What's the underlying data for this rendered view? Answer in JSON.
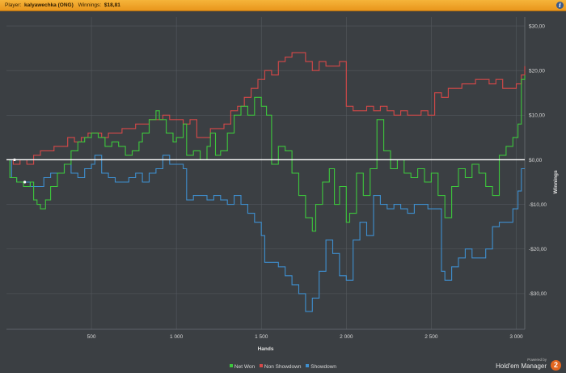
{
  "header": {
    "player_label": "Player:",
    "player_name": "kalyawechka (ONG)",
    "winnings_label": "Winnings:",
    "winnings_value": "$18,81",
    "info_icon": "info-icon"
  },
  "brand": {
    "powered_by": "Powered by",
    "name": "Hold'em Manager",
    "badge": "2"
  },
  "colors": {
    "background": "#3b3f43",
    "grid": "#54595e",
    "zero_line": "#ffffff",
    "net_won": "#3cc73c",
    "non_showdown": "#d64848",
    "showdown": "#3e8fcf",
    "header": "#f0a52c"
  },
  "chart_data": {
    "type": "line",
    "xlabel": "Hands",
    "ylabel": "Winnings",
    "xlim": [
      0,
      3050
    ],
    "ylim": [
      -38,
      32
    ],
    "x_ticks": [
      500,
      1000,
      1500,
      2000,
      2500,
      3000
    ],
    "x_tick_labels": [
      "500",
      "1 000",
      "1 500",
      "2 000",
      "2 500",
      "3 000"
    ],
    "y_ticks": [
      30,
      20,
      10,
      0,
      -10,
      -20,
      -30
    ],
    "y_tick_labels": [
      "$30,00",
      "$20,00",
      "$10,00",
      "$0,00",
      "-$10,00",
      "-$20,00",
      "-$30,00"
    ],
    "grid": true,
    "legend_position": "bottom-center",
    "series": [
      {
        "name": "Net Won",
        "color": "#3cc73c",
        "points": [
          [
            0,
            0
          ],
          [
            20,
            -4
          ],
          [
            60,
            -5
          ],
          [
            100,
            -6
          ],
          [
            140,
            -5
          ],
          [
            160,
            -9
          ],
          [
            180,
            -10
          ],
          [
            200,
            -11
          ],
          [
            230,
            -9
          ],
          [
            260,
            -6
          ],
          [
            300,
            -3
          ],
          [
            340,
            -1
          ],
          [
            380,
            2
          ],
          [
            420,
            4
          ],
          [
            460,
            5
          ],
          [
            500,
            6
          ],
          [
            540,
            5
          ],
          [
            580,
            3
          ],
          [
            620,
            4
          ],
          [
            660,
            3
          ],
          [
            700,
            1
          ],
          [
            740,
            2
          ],
          [
            780,
            4
          ],
          [
            800,
            6
          ],
          [
            840,
            9
          ],
          [
            880,
            11
          ],
          [
            900,
            9
          ],
          [
            940,
            6
          ],
          [
            980,
            4
          ],
          [
            1000,
            5
          ],
          [
            1040,
            8
          ],
          [
            1060,
            1
          ],
          [
            1100,
            2
          ],
          [
            1140,
            0
          ],
          [
            1180,
            3
          ],
          [
            1200,
            6
          ],
          [
            1230,
            1
          ],
          [
            1260,
            2
          ],
          [
            1300,
            6
          ],
          [
            1340,
            10
          ],
          [
            1380,
            12
          ],
          [
            1420,
            10
          ],
          [
            1460,
            14
          ],
          [
            1500,
            12
          ],
          [
            1530,
            10
          ],
          [
            1560,
            -1
          ],
          [
            1600,
            3
          ],
          [
            1640,
            2
          ],
          [
            1680,
            -3
          ],
          [
            1720,
            -8
          ],
          [
            1760,
            -13
          ],
          [
            1800,
            -16
          ],
          [
            1820,
            -10
          ],
          [
            1860,
            -5
          ],
          [
            1900,
            -2
          ],
          [
            1930,
            -10
          ],
          [
            1960,
            -6
          ],
          [
            2000,
            -14
          ],
          [
            2020,
            -12
          ],
          [
            2060,
            -3
          ],
          [
            2100,
            -8
          ],
          [
            2140,
            -2
          ],
          [
            2180,
            9
          ],
          [
            2220,
            2
          ],
          [
            2260,
            -2
          ],
          [
            2300,
            0
          ],
          [
            2340,
            -3
          ],
          [
            2380,
            -4
          ],
          [
            2420,
            -2
          ],
          [
            2460,
            -5
          ],
          [
            2500,
            -3
          ],
          [
            2540,
            -8
          ],
          [
            2580,
            -13
          ],
          [
            2620,
            -6
          ],
          [
            2660,
            -2
          ],
          [
            2700,
            -4
          ],
          [
            2740,
            -1
          ],
          [
            2780,
            -3
          ],
          [
            2820,
            -6
          ],
          [
            2860,
            -8
          ],
          [
            2900,
            1
          ],
          [
            2940,
            3
          ],
          [
            2980,
            5
          ],
          [
            3010,
            8
          ],
          [
            3030,
            18
          ],
          [
            3050,
            19
          ]
        ]
      },
      {
        "name": "Non Showdown",
        "color": "#d64848",
        "points": [
          [
            0,
            0
          ],
          [
            40,
            -1
          ],
          [
            80,
            0
          ],
          [
            120,
            -1
          ],
          [
            160,
            1
          ],
          [
            200,
            2
          ],
          [
            240,
            2
          ],
          [
            280,
            3
          ],
          [
            320,
            3
          ],
          [
            360,
            5
          ],
          [
            400,
            4
          ],
          [
            440,
            5
          ],
          [
            480,
            6
          ],
          [
            520,
            6
          ],
          [
            560,
            5
          ],
          [
            600,
            6
          ],
          [
            640,
            6
          ],
          [
            680,
            7
          ],
          [
            720,
            7
          ],
          [
            760,
            8
          ],
          [
            800,
            8
          ],
          [
            840,
            9
          ],
          [
            880,
            9
          ],
          [
            920,
            10
          ],
          [
            960,
            9
          ],
          [
            1000,
            9
          ],
          [
            1040,
            8
          ],
          [
            1080,
            9
          ],
          [
            1120,
            5
          ],
          [
            1160,
            5
          ],
          [
            1200,
            7
          ],
          [
            1240,
            7
          ],
          [
            1280,
            8
          ],
          [
            1320,
            11
          ],
          [
            1360,
            12
          ],
          [
            1400,
            14
          ],
          [
            1440,
            16
          ],
          [
            1480,
            18
          ],
          [
            1520,
            20
          ],
          [
            1560,
            19
          ],
          [
            1600,
            22
          ],
          [
            1640,
            23
          ],
          [
            1680,
            24
          ],
          [
            1720,
            24
          ],
          [
            1760,
            22
          ],
          [
            1800,
            20
          ],
          [
            1840,
            22
          ],
          [
            1880,
            21
          ],
          [
            1920,
            21
          ],
          [
            1960,
            22
          ],
          [
            2000,
            12
          ],
          [
            2040,
            11
          ],
          [
            2080,
            11
          ],
          [
            2120,
            12
          ],
          [
            2160,
            11
          ],
          [
            2200,
            12
          ],
          [
            2240,
            11
          ],
          [
            2280,
            10
          ],
          [
            2320,
            11
          ],
          [
            2360,
            10
          ],
          [
            2400,
            10
          ],
          [
            2440,
            11
          ],
          [
            2480,
            10
          ],
          [
            2520,
            15
          ],
          [
            2560,
            14
          ],
          [
            2600,
            16
          ],
          [
            2640,
            16
          ],
          [
            2680,
            17
          ],
          [
            2720,
            17
          ],
          [
            2760,
            18
          ],
          [
            2800,
            18
          ],
          [
            2840,
            17
          ],
          [
            2880,
            18
          ],
          [
            2920,
            16
          ],
          [
            2960,
            16
          ],
          [
            3000,
            17
          ],
          [
            3030,
            19
          ],
          [
            3050,
            21
          ]
        ]
      },
      {
        "name": "Showdown",
        "color": "#3e8fcf",
        "points": [
          [
            0,
            0
          ],
          [
            30,
            -4
          ],
          [
            60,
            -5
          ],
          [
            100,
            -5
          ],
          [
            140,
            -6
          ],
          [
            180,
            -6
          ],
          [
            220,
            -4
          ],
          [
            260,
            -3
          ],
          [
            300,
            -3
          ],
          [
            340,
            -1
          ],
          [
            380,
            -3
          ],
          [
            420,
            -4
          ],
          [
            460,
            -2
          ],
          [
            500,
            -1
          ],
          [
            520,
            1
          ],
          [
            560,
            -3
          ],
          [
            600,
            -4
          ],
          [
            640,
            -5
          ],
          [
            680,
            -5
          ],
          [
            720,
            -4
          ],
          [
            760,
            -3
          ],
          [
            800,
            -5
          ],
          [
            840,
            -3
          ],
          [
            880,
            -2
          ],
          [
            920,
            1
          ],
          [
            960,
            -1
          ],
          [
            1000,
            -1
          ],
          [
            1040,
            -2
          ],
          [
            1060,
            -9
          ],
          [
            1100,
            -8
          ],
          [
            1140,
            -8
          ],
          [
            1180,
            -9
          ],
          [
            1220,
            -8
          ],
          [
            1260,
            -9
          ],
          [
            1300,
            -10
          ],
          [
            1340,
            -8
          ],
          [
            1380,
            -10
          ],
          [
            1420,
            -12
          ],
          [
            1460,
            -14
          ],
          [
            1500,
            -17
          ],
          [
            1520,
            -23
          ],
          [
            1560,
            -23
          ],
          [
            1600,
            -24
          ],
          [
            1640,
            -26
          ],
          [
            1680,
            -28
          ],
          [
            1720,
            -30
          ],
          [
            1760,
            -34
          ],
          [
            1800,
            -31
          ],
          [
            1840,
            -25
          ],
          [
            1880,
            -18
          ],
          [
            1920,
            -21
          ],
          [
            1960,
            -26
          ],
          [
            2000,
            -27
          ],
          [
            2040,
            -18
          ],
          [
            2080,
            -14
          ],
          [
            2120,
            -17
          ],
          [
            2160,
            -8
          ],
          [
            2200,
            -10
          ],
          [
            2240,
            -11
          ],
          [
            2280,
            -10
          ],
          [
            2320,
            -11
          ],
          [
            2360,
            -12
          ],
          [
            2400,
            -10
          ],
          [
            2440,
            -10
          ],
          [
            2480,
            -11
          ],
          [
            2520,
            -11
          ],
          [
            2560,
            -25
          ],
          [
            2580,
            -27
          ],
          [
            2620,
            -24
          ],
          [
            2660,
            -22
          ],
          [
            2700,
            -20
          ],
          [
            2740,
            -22
          ],
          [
            2780,
            -22
          ],
          [
            2820,
            -20
          ],
          [
            2860,
            -15
          ],
          [
            2900,
            -14
          ],
          [
            2940,
            -14
          ],
          [
            2980,
            -11
          ],
          [
            3010,
            -7
          ],
          [
            3030,
            -2
          ],
          [
            3050,
            -2
          ]
        ]
      }
    ]
  }
}
